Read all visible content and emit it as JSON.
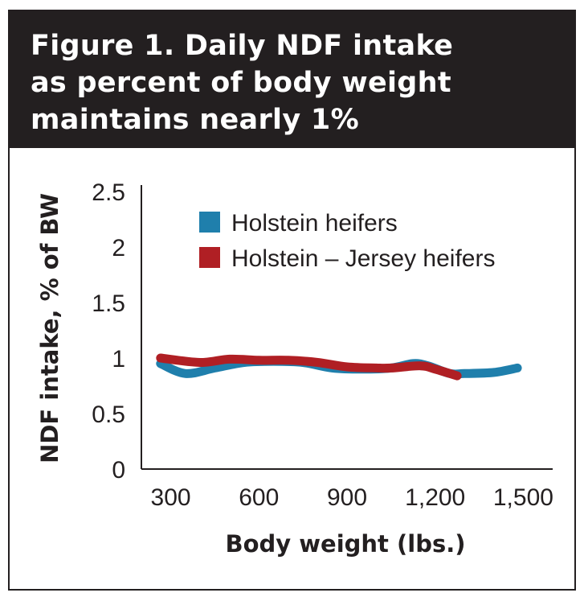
{
  "chart_data": {
    "type": "line",
    "title": "Figure 1. Daily NDF intake as percent of body weight maintains nearly 1%",
    "xlabel": "Body weight (lbs.)",
    "ylabel": "NDF intake, % of BW",
    "xlim": [
      200,
      1600
    ],
    "ylim": [
      0,
      2.5
    ],
    "x_ticks": [
      300,
      600,
      900,
      1200,
      1500
    ],
    "x_tick_labels": [
      "300",
      "600",
      "900",
      "1,200",
      "1,500"
    ],
    "y_ticks": [
      0,
      0.5,
      1,
      1.5,
      2,
      2.5
    ],
    "y_tick_labels": [
      "0",
      "0.5",
      "1",
      "1.5",
      "2",
      "2.5"
    ],
    "grid": false,
    "legend_position": "top-right",
    "series": [
      {
        "name": "Holstein heifers",
        "color": "#1f7fac",
        "x": [
          265,
          350,
          450,
          550,
          650,
          750,
          850,
          950,
          1050,
          1125,
          1175,
          1250,
          1300,
          1400,
          1480
        ],
        "y": [
          0.95,
          0.86,
          0.91,
          0.96,
          0.97,
          0.96,
          0.91,
          0.9,
          0.91,
          0.95,
          0.93,
          0.86,
          0.86,
          0.87,
          0.91
        ]
      },
      {
        "name": "Holstein – Jersey heifers",
        "color": "#b01f24",
        "x": [
          265,
          400,
          500,
          600,
          700,
          800,
          900,
          1000,
          1050,
          1150,
          1200,
          1275
        ],
        "y": [
          1.0,
          0.96,
          0.99,
          0.98,
          0.98,
          0.96,
          0.92,
          0.91,
          0.91,
          0.93,
          0.9,
          0.84
        ]
      }
    ]
  }
}
